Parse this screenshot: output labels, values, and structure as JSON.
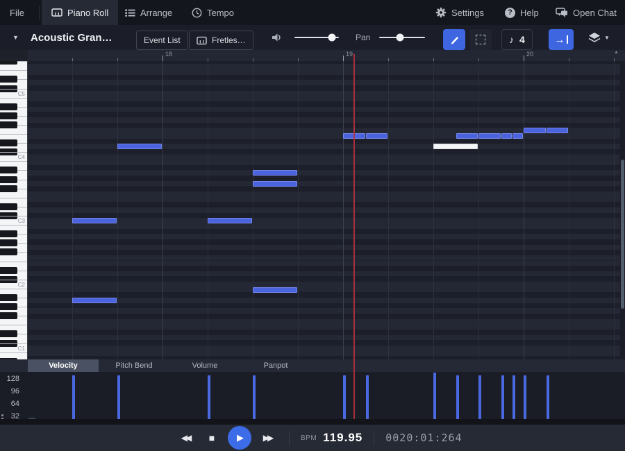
{
  "top_bar": {
    "file_label": "File",
    "tabs": [
      {
        "label": "Piano Roll",
        "icon": "piano-icon",
        "active": true
      },
      {
        "label": "Arrange",
        "icon": "list-icon",
        "active": false
      },
      {
        "label": "Tempo",
        "icon": "clock-icon",
        "active": false
      }
    ],
    "right_items": [
      {
        "label": "Settings",
        "icon": "gear-icon"
      },
      {
        "label": "Help",
        "icon": "help-icon"
      },
      {
        "label": "Open Chat",
        "icon": "chat-icon"
      }
    ]
  },
  "toolbar": {
    "instrument_name": "Acoustic Gran…",
    "event_list_label": "Event List",
    "track_button_label": "Fretles…",
    "pan_label": "Pan",
    "volume_slider_pos": 0.85,
    "pan_slider_pos": 0.45,
    "note_division": "4"
  },
  "ruler": {
    "measures": [
      {
        "label": "18",
        "beat": 3
      },
      {
        "label": "19",
        "beat": 7
      },
      {
        "label": "20",
        "beat": 11
      }
    ],
    "total_beats": 13
  },
  "piano_roll": {
    "octave_labels": [
      "C5",
      "C4",
      "C3",
      "C2",
      "C1"
    ],
    "playhead_beat": 7.23,
    "notes": [
      {
        "pitch": "C3",
        "beat": 1,
        "duration": 1,
        "selected": false
      },
      {
        "pitch": "A1",
        "beat": 1,
        "duration": 1,
        "selected": false
      },
      {
        "pitch": "D4",
        "beat": 2,
        "duration": 1,
        "selected": false
      },
      {
        "pitch": "C3",
        "beat": 4,
        "duration": 1,
        "selected": false
      },
      {
        "pitch": "A3",
        "beat": 5,
        "duration": 1,
        "selected": false
      },
      {
        "pitch": "G3",
        "beat": 5,
        "duration": 1,
        "selected": false
      },
      {
        "pitch": "B1",
        "beat": 5,
        "duration": 1,
        "selected": false
      },
      {
        "pitch": "E4",
        "beat": 7,
        "duration": 0.5,
        "selected": false
      },
      {
        "pitch": "E4",
        "beat": 7.5,
        "duration": 0.5,
        "selected": false
      },
      {
        "pitch": "D4",
        "beat": 9,
        "duration": 1,
        "selected": true
      },
      {
        "pitch": "E4",
        "beat": 9.5,
        "duration": 0.5,
        "selected": false
      },
      {
        "pitch": "E4",
        "beat": 10,
        "duration": 0.5,
        "selected": false
      },
      {
        "pitch": "E4",
        "beat": 10.5,
        "duration": 0.25,
        "selected": false
      },
      {
        "pitch": "E4",
        "beat": 10.75,
        "duration": 0.25,
        "selected": false
      },
      {
        "pitch": "F4",
        "beat": 11,
        "duration": 0.5,
        "selected": false
      },
      {
        "pitch": "F4",
        "beat": 11.5,
        "duration": 0.5,
        "selected": false
      }
    ]
  },
  "controller_panel": {
    "tabs": [
      "Velocity",
      "Pitch Bend",
      "Volume",
      "Panpot"
    ],
    "active_tab": "Velocity",
    "scale_labels": [
      "128",
      "96",
      "64",
      "32"
    ],
    "bars": [
      {
        "beat": 1,
        "value": 118
      },
      {
        "beat": 2,
        "value": 118
      },
      {
        "beat": 4,
        "value": 118
      },
      {
        "beat": 5,
        "value": 118
      },
      {
        "beat": 7,
        "value": 118
      },
      {
        "beat": 7.5,
        "value": 118
      },
      {
        "beat": 9,
        "value": 127
      },
      {
        "beat": 9.5,
        "value": 118
      },
      {
        "beat": 10,
        "value": 118
      },
      {
        "beat": 10.5,
        "value": 118
      },
      {
        "beat": 10.75,
        "value": 118
      },
      {
        "beat": 11,
        "value": 118
      },
      {
        "beat": 11.5,
        "value": 118
      }
    ]
  },
  "transport": {
    "bpm_label": "BPM",
    "bpm_value": "119.95",
    "time_value": "0020:01:264"
  },
  "colors": {
    "accent": "#3e66e0",
    "note": "#4b63dc",
    "note_border": "#7587ee",
    "selected_note": "#f5f6f8",
    "playhead": "#b9303c",
    "velocity_bar": "#4a68e0"
  }
}
